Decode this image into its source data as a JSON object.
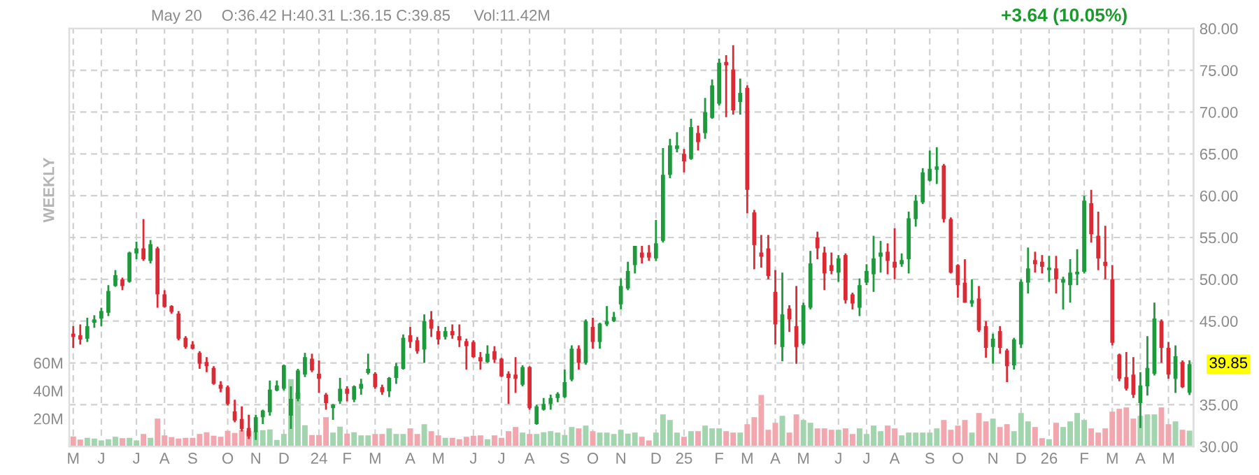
{
  "chart_data": {
    "type": "candlestick",
    "annotations": [
      "May 20",
      "O:36.42 H:40.31 L:36.15 C:39.85",
      "Vol:11.42M",
      "+3.64 (10.05%)",
      "WEEKLY",
      {
        "text": "39.85",
        "x": "2026-05-18",
        "y": 39.85
      }
    ],
    "x": [
      "2023-05-01",
      "2023-05-08",
      "2023-05-15",
      "2023-05-22",
      "2023-05-29",
      "2023-06-05",
      "2023-06-12",
      "2023-06-19",
      "2023-06-26",
      "2023-07-03",
      "2023-07-10",
      "2023-07-17",
      "2023-07-24",
      "2023-07-31",
      "2023-08-07",
      "2023-08-14",
      "2023-08-21",
      "2023-08-28",
      "2023-09-04",
      "2023-09-11",
      "2023-09-18",
      "2023-09-25",
      "2023-10-02",
      "2023-10-09",
      "2023-10-16",
      "2023-10-23",
      "2023-10-30",
      "2023-11-06",
      "2023-11-13",
      "2023-11-20",
      "2023-11-27",
      "2023-12-04",
      "2023-12-11",
      "2023-12-18",
      "2023-12-25",
      "2024-01-01",
      "2024-01-08",
      "2024-01-15",
      "2024-01-22",
      "2024-01-29",
      "2024-02-05",
      "2024-02-12",
      "2024-02-19",
      "2024-02-26",
      "2024-03-04",
      "2024-03-11",
      "2024-03-18",
      "2024-03-25",
      "2024-04-01",
      "2024-04-08",
      "2024-04-15",
      "2024-04-22",
      "2024-04-29",
      "2024-05-06",
      "2024-05-13",
      "2024-05-20",
      "2024-05-27",
      "2024-06-03",
      "2024-06-10",
      "2024-06-17",
      "2024-06-24",
      "2024-07-01",
      "2024-07-08",
      "2024-07-15",
      "2024-07-22",
      "2024-07-29",
      "2024-08-05",
      "2024-08-12",
      "2024-08-19",
      "2024-08-26",
      "2024-09-02",
      "2024-09-09",
      "2024-09-16",
      "2024-09-23",
      "2024-09-30",
      "2024-10-07",
      "2024-10-14",
      "2024-10-21",
      "2024-10-28",
      "2024-11-04",
      "2024-11-11",
      "2024-11-18",
      "2024-11-25",
      "2024-12-02",
      "2024-12-09",
      "2024-12-16",
      "2024-12-23",
      "2024-12-30",
      "2025-01-06",
      "2025-01-13",
      "2025-01-20",
      "2025-01-27",
      "2025-02-03",
      "2025-02-10",
      "2025-02-17",
      "2025-02-24",
      "2025-03-03",
      "2025-03-10",
      "2025-03-17",
      "2025-03-24",
      "2025-03-31",
      "2025-04-07",
      "2025-04-14",
      "2025-04-21",
      "2025-04-28",
      "2025-05-05",
      "2025-05-12",
      "2025-05-19",
      "2025-05-26",
      "2025-06-02",
      "2025-06-09",
      "2025-06-16",
      "2025-06-23",
      "2025-06-30",
      "2025-07-07",
      "2025-07-14",
      "2025-07-21",
      "2025-07-28",
      "2025-08-04",
      "2025-08-11",
      "2025-08-18",
      "2025-08-25",
      "2025-09-01",
      "2025-09-08",
      "2025-09-15",
      "2025-09-22",
      "2025-09-29",
      "2025-10-06",
      "2025-10-13",
      "2025-10-20",
      "2025-10-27",
      "2025-11-03",
      "2025-11-10",
      "2025-11-17",
      "2025-11-24",
      "2025-12-01",
      "2025-12-08",
      "2025-12-15",
      "2025-12-22",
      "2025-12-29",
      "2026-01-05",
      "2026-01-12",
      "2026-01-19",
      "2026-01-26",
      "2026-02-02",
      "2026-02-09",
      "2026-02-16",
      "2026-02-23",
      "2026-03-02",
      "2026-03-09",
      "2026-03-16",
      "2026-03-23",
      "2026-03-30",
      "2026-04-06",
      "2026-04-13",
      "2026-04-20",
      "2026-04-27",
      "2026-05-04",
      "2026-05-11",
      "2026-05-18"
    ],
    "ohlc": [
      [
        43.5,
        44.4,
        41.8,
        43.1
      ],
      [
        43.3,
        44.6,
        42.2,
        42.8
      ],
      [
        42.9,
        45.4,
        42.5,
        44.4
      ],
      [
        44.8,
        45.7,
        44.2,
        45.2
      ],
      [
        45.3,
        46.6,
        44.4,
        46.2
      ],
      [
        46.0,
        49.3,
        45.6,
        48.6
      ],
      [
        49.2,
        51.1,
        49.1,
        50.5
      ],
      [
        50.0,
        50.2,
        48.7,
        49.2
      ],
      [
        49.7,
        53.3,
        49.6,
        53.2
      ],
      [
        53.1,
        54.5,
        52.4,
        53.7
      ],
      [
        53.7,
        57.2,
        52.2,
        52.4
      ],
      [
        52.2,
        54.7,
        51.9,
        54.2
      ],
      [
        53.7,
        53.9,
        46.6,
        48.2
      ],
      [
        48.2,
        48.7,
        46.6,
        46.7
      ],
      [
        46.8,
        46.9,
        45.9,
        46.1
      ],
      [
        45.9,
        46.2,
        42.7,
        42.9
      ],
      [
        43.0,
        43.2,
        41.7,
        41.9
      ],
      [
        42.2,
        42.6,
        41.6,
        41.7
      ],
      [
        41.2,
        41.4,
        39.3,
        39.9
      ],
      [
        40.1,
        40.7,
        38.9,
        39.6
      ],
      [
        39.4,
        39.6,
        37.4,
        37.5
      ],
      [
        37.4,
        37.8,
        36.5,
        36.9
      ],
      [
        37.1,
        37.3,
        34.9,
        35.1
      ],
      [
        34.2,
        35.6,
        32.9,
        33.1
      ],
      [
        33.3,
        34.8,
        31.8,
        32.1
      ],
      [
        32.2,
        33.8,
        30.9,
        31.2
      ],
      [
        31.7,
        33.8,
        30.8,
        33.5
      ],
      [
        33.5,
        34.4,
        32.7,
        34.3
      ],
      [
        34.1,
        37.9,
        33.7,
        36.8
      ],
      [
        36.7,
        37.9,
        36.6,
        37.3
      ],
      [
        36.9,
        39.8,
        36.7,
        39.7
      ],
      [
        33.7,
        37.2,
        32.1,
        35.7
      ],
      [
        35.7,
        39.3,
        35.4,
        39.1
      ],
      [
        38.6,
        41.2,
        38.3,
        40.7
      ],
      [
        40.5,
        41.1,
        38.9,
        39.1
      ],
      [
        38.7,
        40.3,
        36.4,
        38.1
      ],
      [
        36.2,
        36.4,
        34.4,
        35.2
      ],
      [
        34.6,
        35.1,
        33.2,
        35.0
      ],
      [
        35.4,
        38.2,
        35.1,
        36.9
      ],
      [
        36.9,
        37.2,
        35.4,
        36.3
      ],
      [
        35.6,
        37.3,
        35.3,
        37.2
      ],
      [
        36.9,
        38.1,
        36.2,
        37.5
      ],
      [
        38.8,
        41.1,
        38.6,
        39.3
      ],
      [
        38.7,
        38.9,
        36.9,
        37.1
      ],
      [
        37.1,
        37.4,
        36.2,
        36.5
      ],
      [
        36.6,
        38.3,
        35.9,
        38.2
      ],
      [
        38.2,
        40.0,
        37.5,
        39.6
      ],
      [
        39.3,
        43.4,
        39.2,
        43.0
      ],
      [
        43.3,
        44.3,
        41.8,
        42.5
      ],
      [
        42.7,
        43.1,
        41.1,
        41.4
      ],
      [
        41.6,
        45.8,
        40.0,
        45.0
      ],
      [
        45.2,
        46.2,
        43.1,
        44.1
      ],
      [
        43.8,
        44.4,
        42.2,
        42.8
      ],
      [
        43.1,
        44.3,
        42.8,
        43.8
      ],
      [
        43.8,
        44.6,
        42.9,
        43.3
      ],
      [
        43.2,
        44.6,
        41.9,
        42.7
      ],
      [
        42.6,
        42.9,
        39.2,
        42.0
      ],
      [
        42.5,
        42.7,
        40.6,
        40.7
      ],
      [
        40.7,
        41.3,
        39.2,
        40.2
      ],
      [
        40.1,
        42.1,
        40.0,
        41.1
      ],
      [
        41.4,
        42.0,
        40.0,
        40.4
      ],
      [
        40.5,
        40.6,
        38.3,
        38.4
      ],
      [
        38.7,
        39.0,
        35.1,
        38.2
      ],
      [
        38.6,
        40.7,
        36.4,
        38.1
      ],
      [
        37.4,
        39.7,
        37.2,
        39.5
      ],
      [
        39.5,
        39.6,
        34.4,
        34.6
      ],
      [
        32.7,
        35.0,
        32.6,
        34.8
      ],
      [
        34.4,
        35.8,
        34.3,
        35.1
      ],
      [
        35.1,
        36.2,
        34.4,
        35.8
      ],
      [
        35.8,
        36.5,
        35.3,
        36.3
      ],
      [
        35.9,
        39.2,
        35.8,
        37.7
      ],
      [
        38.0,
        42.1,
        37.8,
        41.7
      ],
      [
        41.7,
        42.1,
        39.2,
        40.0
      ],
      [
        40.0,
        45.2,
        39.8,
        45.0
      ],
      [
        44.3,
        45.4,
        41.7,
        42.5
      ],
      [
        42.5,
        44.8,
        41.7,
        44.7
      ],
      [
        44.6,
        46.8,
        44.4,
        45.0
      ],
      [
        45.0,
        46.1,
        44.9,
        45.5
      ],
      [
        47.0,
        50.1,
        46.4,
        49.2
      ],
      [
        48.9,
        52.1,
        48.7,
        51.0
      ],
      [
        51.7,
        54.0,
        50.7,
        54.0
      ],
      [
        53.2,
        54.0,
        51.9,
        52.6
      ],
      [
        53.2,
        54.1,
        52.2,
        52.6
      ],
      [
        52.5,
        57.1,
        52.2,
        54.3
      ],
      [
        54.6,
        65.7,
        54.4,
        62.5
      ],
      [
        62.5,
        66.8,
        62.1,
        66.0
      ],
      [
        65.6,
        67.6,
        65.2,
        66.0
      ],
      [
        65.0,
        65.6,
        62.8,
        64.1
      ],
      [
        64.4,
        69.2,
        64.3,
        68.2
      ],
      [
        67.5,
        68.4,
        65.4,
        66.4
      ],
      [
        67.5,
        71.7,
        66.8,
        70.0
      ],
      [
        69.3,
        73.9,
        69.2,
        73.2
      ],
      [
        71.0,
        76.4,
        70.8,
        75.9
      ],
      [
        76.0,
        76.8,
        69.4,
        75.6
      ],
      [
        75.1,
        78.0,
        69.7,
        70.2
      ],
      [
        71.2,
        74.0,
        69.7,
        72.3
      ],
      [
        72.9,
        73.2,
        57.9,
        60.7
      ],
      [
        58.0,
        58.3,
        51.2,
        54.1
      ],
      [
        53.2,
        55.3,
        51.4,
        52.7
      ],
      [
        53.7,
        55.3,
        50.0,
        50.4
      ],
      [
        48.5,
        51.1,
        42.2,
        44.6
      ],
      [
        41.9,
        50.8,
        40.2,
        45.8
      ],
      [
        46.5,
        46.9,
        43.7,
        45.2
      ],
      [
        44.4,
        49.2,
        39.9,
        41.9
      ],
      [
        42.3,
        47.2,
        42.1,
        46.9
      ],
      [
        46.6,
        53.4,
        46.4,
        51.9
      ],
      [
        55.0,
        55.7,
        52.4,
        53.7
      ],
      [
        53.2,
        53.9,
        48.7,
        50.7
      ],
      [
        51.7,
        53.2,
        50.6,
        51.0
      ],
      [
        50.8,
        52.9,
        49.7,
        52.5
      ],
      [
        52.9,
        53.1,
        47.1,
        47.5
      ],
      [
        48.2,
        48.4,
        46.4,
        47.1
      ],
      [
        46.6,
        50.1,
        45.6,
        49.3
      ],
      [
        49.6,
        51.8,
        49.3,
        51.0
      ],
      [
        50.6,
        55.2,
        48.5,
        52.5
      ],
      [
        52.7,
        54.6,
        50.8,
        53.2
      ],
      [
        53.3,
        54.3,
        50.6,
        52.2
      ],
      [
        52.1,
        56.1,
        50.0,
        51.4
      ],
      [
        51.8,
        53.1,
        51.5,
        52.3
      ],
      [
        52.4,
        58.1,
        50.7,
        57.3
      ],
      [
        57.2,
        60.1,
        56.3,
        59.4
      ],
      [
        59.2,
        63.3,
        59.0,
        62.8
      ],
      [
        61.8,
        65.4,
        61.7,
        63.2
      ],
      [
        63.1,
        65.8,
        61.4,
        63.5
      ],
      [
        63.6,
        63.8,
        56.8,
        57.2
      ],
      [
        57.2,
        57.4,
        50.7,
        50.8
      ],
      [
        51.7,
        51.8,
        47.8,
        49.3
      ],
      [
        49.6,
        52.4,
        47.2,
        47.2
      ],
      [
        47.1,
        50.0,
        46.7,
        47.5
      ],
      [
        47.7,
        49.2,
        43.7,
        43.9
      ],
      [
        44.4,
        45.0,
        40.6,
        41.8
      ],
      [
        41.9,
        43.5,
        39.9,
        42.9
      ],
      [
        43.8,
        44.4,
        41.1,
        41.8
      ],
      [
        41.5,
        41.7,
        37.7,
        39.6
      ],
      [
        39.7,
        43.0,
        39.2,
        42.8
      ],
      [
        42.2,
        50.0,
        41.8,
        49.7
      ],
      [
        49.6,
        53.8,
        48.3,
        51.3
      ],
      [
        52.3,
        53.3,
        50.8,
        51.8
      ],
      [
        52.1,
        52.9,
        50.7,
        51.5
      ],
      [
        51.1,
        52.8,
        49.7,
        51.4
      ],
      [
        51.3,
        52.8,
        48.3,
        50.0
      ],
      [
        49.6,
        50.3,
        46.4,
        50.0
      ],
      [
        49.3,
        52.4,
        47.2,
        50.8
      ],
      [
        50.6,
        53.6,
        49.3,
        50.9
      ],
      [
        50.9,
        60.0,
        50.7,
        59.4
      ],
      [
        59.1,
        60.7,
        54.4,
        55.4
      ],
      [
        55.2,
        58.1,
        51.1,
        52.5
      ],
      [
        52.1,
        56.4,
        50.0,
        51.6
      ],
      [
        50.0,
        51.7,
        42.1,
        42.4
      ],
      [
        41.0,
        41.1,
        37.8,
        38.1
      ],
      [
        38.3,
        41.3,
        36.7,
        36.9
      ],
      [
        38.6,
        40.7,
        35.8,
        36.2
      ],
      [
        35.2,
        38.9,
        32.2,
        37.3
      ],
      [
        37.2,
        43.2,
        36.1,
        39.4
      ],
      [
        38.7,
        47.2,
        38.5,
        45.3
      ],
      [
        45.0,
        45.2,
        40.0,
        41.8
      ],
      [
        41.8,
        42.5,
        38.1,
        38.6
      ],
      [
        38.1,
        42.1,
        36.4,
        40.8
      ],
      [
        40.1,
        40.3,
        37.0,
        37.1
      ],
      [
        36.42,
        40.31,
        36.15,
        39.85
      ]
    ],
    "colors": [
      "#dc2a35",
      "#dc2a35",
      "#1e9a3c",
      "#1e9a3c",
      "#1e9a3c",
      "#1e9a3c",
      "#1e9a3c",
      "#dc2a35",
      "#1e9a3c",
      "#1e9a3c",
      "#dc2a35",
      "#1e9a3c",
      "#dc2a35",
      "#dc2a35",
      "#dc2a35",
      "#dc2a35",
      "#dc2a35",
      "#dc2a35",
      "#dc2a35",
      "#dc2a35",
      "#dc2a35",
      "#dc2a35",
      "#dc2a35",
      "#dc2a35",
      "#dc2a35",
      "#dc2a35",
      "#1e9a3c",
      "#1e9a3c",
      "#1e9a3c",
      "#1e9a3c",
      "#1e9a3c",
      "#1e9a3c",
      "#1e9a3c",
      "#1e9a3c",
      "#dc2a35",
      "#dc2a35",
      "#dc2a35",
      "#1e9a3c",
      "#1e9a3c",
      "#dc2a35",
      "#1e9a3c",
      "#1e9a3c",
      "#1e9a3c",
      "#dc2a35",
      "#dc2a35",
      "#1e9a3c",
      "#1e9a3c",
      "#1e9a3c",
      "#dc2a35",
      "#dc2a35",
      "#1e9a3c",
      "#dc2a35",
      "#dc2a35",
      "#1e9a3c",
      "#dc2a35",
      "#dc2a35",
      "#dc2a35",
      "#dc2a35",
      "#dc2a35",
      "#1e9a3c",
      "#dc2a35",
      "#dc2a35",
      "#dc2a35",
      "#dc2a35",
      "#1e9a3c",
      "#dc2a35",
      "#1e9a3c",
      "#1e9a3c",
      "#1e9a3c",
      "#1e9a3c",
      "#1e9a3c",
      "#1e9a3c",
      "#dc2a35",
      "#1e9a3c",
      "#dc2a35",
      "#1e9a3c",
      "#1e9a3c",
      "#1e9a3c",
      "#1e9a3c",
      "#1e9a3c",
      "#1e9a3c",
      "#dc2a35",
      "#dc2a35",
      "#1e9a3c",
      "#1e9a3c",
      "#1e9a3c",
      "#1e9a3c",
      "#dc2a35",
      "#1e9a3c",
      "#dc2a35",
      "#1e9a3c",
      "#1e9a3c",
      "#1e9a3c",
      "#dc2a35",
      "#dc2a35",
      "#1e9a3c",
      "#dc2a35",
      "#dc2a35",
      "#dc2a35",
      "#dc2a35",
      "#dc2a35",
      "#1e9a3c",
      "#dc2a35",
      "#dc2a35",
      "#1e9a3c",
      "#1e9a3c",
      "#dc2a35",
      "#dc2a35",
      "#dc2a35",
      "#1e9a3c",
      "#dc2a35",
      "#dc2a35",
      "#1e9a3c",
      "#1e9a3c",
      "#1e9a3c",
      "#1e9a3c",
      "#dc2a35",
      "#dc2a35",
      "#1e9a3c",
      "#1e9a3c",
      "#1e9a3c",
      "#1e9a3c",
      "#1e9a3c",
      "#1e9a3c",
      "#dc2a35",
      "#dc2a35",
      "#dc2a35",
      "#dc2a35",
      "#1e9a3c",
      "#dc2a35",
      "#dc2a35",
      "#1e9a3c",
      "#dc2a35",
      "#dc2a35",
      "#1e9a3c",
      "#1e9a3c",
      "#1e9a3c",
      "#dc2a35",
      "#dc2a35",
      "#1e9a3c",
      "#dc2a35",
      "#1e9a3c",
      "#1e9a3c",
      "#1e9a3c",
      "#1e9a3c",
      "#dc2a35",
      "#dc2a35",
      "#dc2a35",
      "#dc2a35",
      "#dc2a35",
      "#dc2a35",
      "#dc2a35",
      "#1e9a3c",
      "#1e9a3c",
      "#1e9a3c",
      "#dc2a35",
      "#dc2a35",
      "#1e9a3c",
      "#dc2a35",
      "#1e9a3c"
    ],
    "series": [
      {
        "type": "bar",
        "axis": "y2",
        "colors": [
          "#f2a6ad",
          "#f2a6ad",
          "#a2d5ad",
          "#a2d5ad",
          "#a2d5ad",
          "#a2d5ad",
          "#a2d5ad",
          "#f2a6ad",
          "#a2d5ad",
          "#a2d5ad",
          "#f2a6ad",
          "#a2d5ad",
          "#f2a6ad",
          "#f2a6ad",
          "#f2a6ad",
          "#f2a6ad",
          "#f2a6ad",
          "#f2a6ad",
          "#f2a6ad",
          "#f2a6ad",
          "#f2a6ad",
          "#f2a6ad",
          "#f2a6ad",
          "#f2a6ad",
          "#f2a6ad",
          "#f2a6ad",
          "#a2d5ad",
          "#a2d5ad",
          "#a2d5ad",
          "#a2d5ad",
          "#a2d5ad",
          "#a2d5ad",
          "#a2d5ad",
          "#a2d5ad",
          "#f2a6ad",
          "#f2a6ad",
          "#f2a6ad",
          "#a2d5ad",
          "#a2d5ad",
          "#f2a6ad",
          "#a2d5ad",
          "#a2d5ad",
          "#a2d5ad",
          "#f2a6ad",
          "#f2a6ad",
          "#a2d5ad",
          "#a2d5ad",
          "#a2d5ad",
          "#f2a6ad",
          "#f2a6ad",
          "#a2d5ad",
          "#f2a6ad",
          "#f2a6ad",
          "#a2d5ad",
          "#f2a6ad",
          "#f2a6ad",
          "#f2a6ad",
          "#f2a6ad",
          "#f2a6ad",
          "#a2d5ad",
          "#f2a6ad",
          "#f2a6ad",
          "#f2a6ad",
          "#f2a6ad",
          "#a2d5ad",
          "#f2a6ad",
          "#a2d5ad",
          "#a2d5ad",
          "#a2d5ad",
          "#a2d5ad",
          "#a2d5ad",
          "#a2d5ad",
          "#f2a6ad",
          "#a2d5ad",
          "#f2a6ad",
          "#a2d5ad",
          "#a2d5ad",
          "#a2d5ad",
          "#a2d5ad",
          "#a2d5ad",
          "#a2d5ad",
          "#f2a6ad",
          "#f2a6ad",
          "#a2d5ad",
          "#a2d5ad",
          "#a2d5ad",
          "#a2d5ad",
          "#f2a6ad",
          "#a2d5ad",
          "#f2a6ad",
          "#a2d5ad",
          "#a2d5ad",
          "#a2d5ad",
          "#f2a6ad",
          "#f2a6ad",
          "#a2d5ad",
          "#f2a6ad",
          "#f2a6ad",
          "#f2a6ad",
          "#f2a6ad",
          "#f2a6ad",
          "#a2d5ad",
          "#f2a6ad",
          "#f2a6ad",
          "#a2d5ad",
          "#a2d5ad",
          "#f2a6ad",
          "#f2a6ad",
          "#f2a6ad",
          "#a2d5ad",
          "#f2a6ad",
          "#f2a6ad",
          "#a2d5ad",
          "#a2d5ad",
          "#a2d5ad",
          "#a2d5ad",
          "#f2a6ad",
          "#f2a6ad",
          "#a2d5ad",
          "#a2d5ad",
          "#a2d5ad",
          "#a2d5ad",
          "#a2d5ad",
          "#a2d5ad",
          "#f2a6ad",
          "#f2a6ad",
          "#f2a6ad",
          "#f2a6ad",
          "#a2d5ad",
          "#f2a6ad",
          "#f2a6ad",
          "#a2d5ad",
          "#f2a6ad",
          "#f2a6ad",
          "#a2d5ad",
          "#a2d5ad",
          "#a2d5ad",
          "#f2a6ad",
          "#f2a6ad",
          "#a2d5ad",
          "#f2a6ad",
          "#a2d5ad",
          "#a2d5ad",
          "#a2d5ad",
          "#a2d5ad",
          "#f2a6ad",
          "#f2a6ad",
          "#f2a6ad",
          "#f2a6ad",
          "#f2a6ad",
          "#f2a6ad",
          "#f2a6ad",
          "#a2d5ad",
          "#a2d5ad",
          "#a2d5ad",
          "#f2a6ad",
          "#f2a6ad",
          "#a2d5ad",
          "#f2a6ad",
          "#a2d5ad"
        ],
        "values": [
          7.3,
          5,
          6.3,
          5.7,
          4.3,
          5.3,
          7,
          6,
          6.3,
          4.3,
          9,
          6.3,
          20,
          8,
          6.7,
          5.7,
          6.3,
          6.3,
          9,
          10.3,
          7.7,
          7,
          11.3,
          9.7,
          12,
          11.3,
          10.7,
          11.7,
          12.3,
          4.7,
          9,
          48.3,
          38.7,
          15.3,
          8.3,
          8.3,
          21,
          10,
          14.3,
          9.3,
          10.3,
          8,
          8,
          9,
          9,
          13,
          9,
          9,
          13,
          9,
          16,
          11,
          8,
          6.3,
          6.3,
          5.3,
          7,
          7.7,
          8,
          5.3,
          8,
          6.3,
          11,
          14,
          10,
          9,
          9,
          10.3,
          11,
          10,
          8.3,
          14,
          13,
          15,
          11,
          10,
          10,
          9,
          12,
          9.3,
          10,
          7,
          4.3,
          10,
          23,
          19,
          10,
          7,
          11,
          11,
          15,
          13,
          13,
          11,
          10,
          10,
          16,
          21,
          37,
          12,
          17,
          22,
          10,
          23,
          19,
          17,
          13,
          13,
          12,
          12,
          13,
          9,
          13,
          9,
          15,
          11,
          15,
          13,
          8,
          10,
          10,
          10,
          10,
          13,
          19,
          12,
          15,
          19,
          10,
          24,
          18,
          20,
          14,
          16,
          11,
          24,
          18,
          14,
          6,
          5.3,
          17,
          14,
          18,
          24,
          19,
          13,
          10,
          13,
          25,
          27,
          28,
          20,
          22,
          23,
          23,
          28,
          16,
          18,
          12,
          11.42
        ]
      }
    ],
    "xlim": [
      "2023-04-27",
      "2026-05-22"
    ],
    "xticks": [
      {
        "value": "2023-05-01",
        "label": "M"
      },
      {
        "value": "2023-05-29",
        "label": "J"
      },
      {
        "value": "2023-07-03",
        "label": "J"
      },
      {
        "value": "2023-07-31",
        "label": "A"
      },
      {
        "value": "2023-08-28",
        "label": "S"
      },
      {
        "value": "2023-10-02",
        "label": "O"
      },
      {
        "value": "2023-10-30",
        "label": "N"
      },
      {
        "value": "2023-11-27",
        "label": "D"
      },
      {
        "value": "2024-01-01",
        "label": "24"
      },
      {
        "value": "2024-01-29",
        "label": "F"
      },
      {
        "value": "2024-02-26",
        "label": "M"
      },
      {
        "value": "2024-04-01",
        "label": "A"
      },
      {
        "value": "2024-04-29",
        "label": "M"
      },
      {
        "value": "2024-06-03",
        "label": "J"
      },
      {
        "value": "2024-07-01",
        "label": "J"
      },
      {
        "value": "2024-07-29",
        "label": "A"
      },
      {
        "value": "2024-09-02",
        "label": "S"
      },
      {
        "value": "2024-09-30",
        "label": "O"
      },
      {
        "value": "2024-10-28",
        "label": "N"
      },
      {
        "value": "2024-12-02",
        "label": "D"
      },
      {
        "value": "2024-12-30",
        "label": "25"
      },
      {
        "value": "2025-02-03",
        "label": "F"
      },
      {
        "value": "2025-03-03",
        "label": "M"
      },
      {
        "value": "2025-03-31",
        "label": "A"
      },
      {
        "value": "2025-04-28",
        "label": "M"
      },
      {
        "value": "2025-06-02",
        "label": "J"
      },
      {
        "value": "2025-06-30",
        "label": "J"
      },
      {
        "value": "2025-07-28",
        "label": "A"
      },
      {
        "value": "2025-09-01",
        "label": "S"
      },
      {
        "value": "2025-09-29",
        "label": "O"
      },
      {
        "value": "2025-11-03",
        "label": "N"
      },
      {
        "value": "2025-12-01",
        "label": "D"
      },
      {
        "value": "2025-12-29",
        "label": "26"
      },
      {
        "value": "2026-02-02",
        "label": "F"
      },
      {
        "value": "2026-03-02",
        "label": "M"
      },
      {
        "value": "2026-03-30",
        "label": "A"
      },
      {
        "value": "2026-04-27",
        "label": "M"
      }
    ],
    "ylim": [
      30,
      80
    ],
    "yticks": [
      {
        "value": 30,
        "label": "30.00"
      },
      {
        "value": 35,
        "label": "35.00"
      },
      {
        "value": 40,
        "label": null
      },
      {
        "value": 45,
        "label": "45.00"
      },
      {
        "value": 50,
        "label": "50.00"
      },
      {
        "value": 55,
        "label": "55.00"
      },
      {
        "value": 60,
        "label": "60.00"
      },
      {
        "value": 65,
        "label": "65.00"
      },
      {
        "value": 70,
        "label": "70.00"
      },
      {
        "value": 75,
        "label": "75.00"
      },
      {
        "value": 80,
        "label": "80.00"
      }
    ],
    "y2lim": [
      0,
      300
    ],
    "y2ticks": [
      {
        "value": 20,
        "label": "20M"
      },
      {
        "value": 40,
        "label": "40M"
      },
      {
        "value": 60,
        "label": "60M"
      }
    ],
    "grid": true
  }
}
